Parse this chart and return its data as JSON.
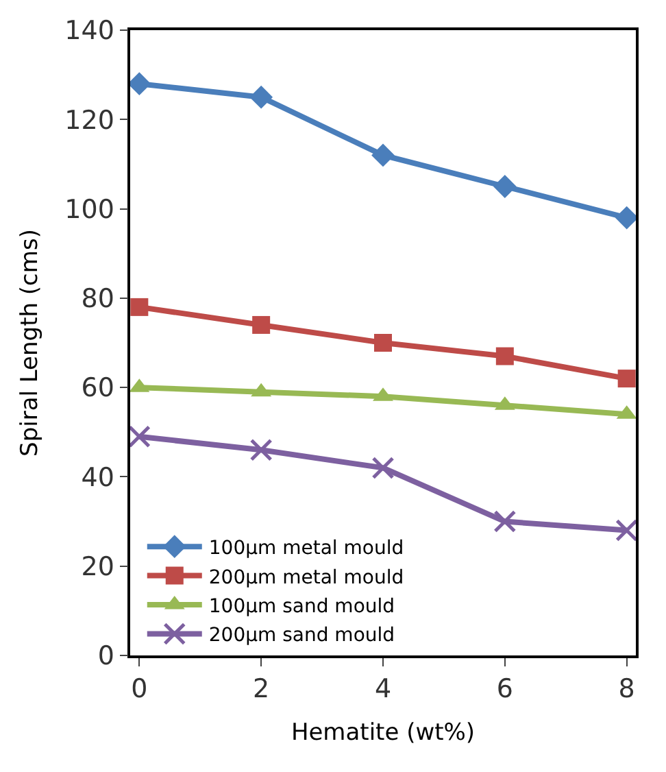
{
  "chart_data": {
    "type": "line",
    "xlabel": "Hematite (wt%)",
    "ylabel": "Spiral Length (cms)",
    "x": [
      0,
      2,
      4,
      6,
      8
    ],
    "series": [
      {
        "name": "100µm metal mould",
        "color": "#4a7ebb",
        "marker": "diamond",
        "values": [
          128,
          125,
          112,
          105,
          98
        ]
      },
      {
        "name": "200µm metal mould",
        "color": "#be4b48",
        "marker": "square",
        "values": [
          78,
          74,
          70,
          67,
          62
        ]
      },
      {
        "name": "100µm sand mould",
        "color": "#98b954",
        "marker": "triangle",
        "values": [
          60,
          59,
          58,
          56,
          54
        ]
      },
      {
        "name": "200µm sand mould",
        "color": "#7d60a0",
        "marker": "cross",
        "values": [
          49,
          46,
          42,
          30,
          28
        ]
      }
    ],
    "xlim": [
      -0.15,
      8.15
    ],
    "xticks": [
      0,
      2,
      4,
      6,
      8
    ],
    "ylim": [
      0,
      140
    ],
    "yticks": [
      0,
      20,
      40,
      60,
      80,
      100,
      120,
      140
    ],
    "legend": "bottom left",
    "line_style": "solid"
  }
}
